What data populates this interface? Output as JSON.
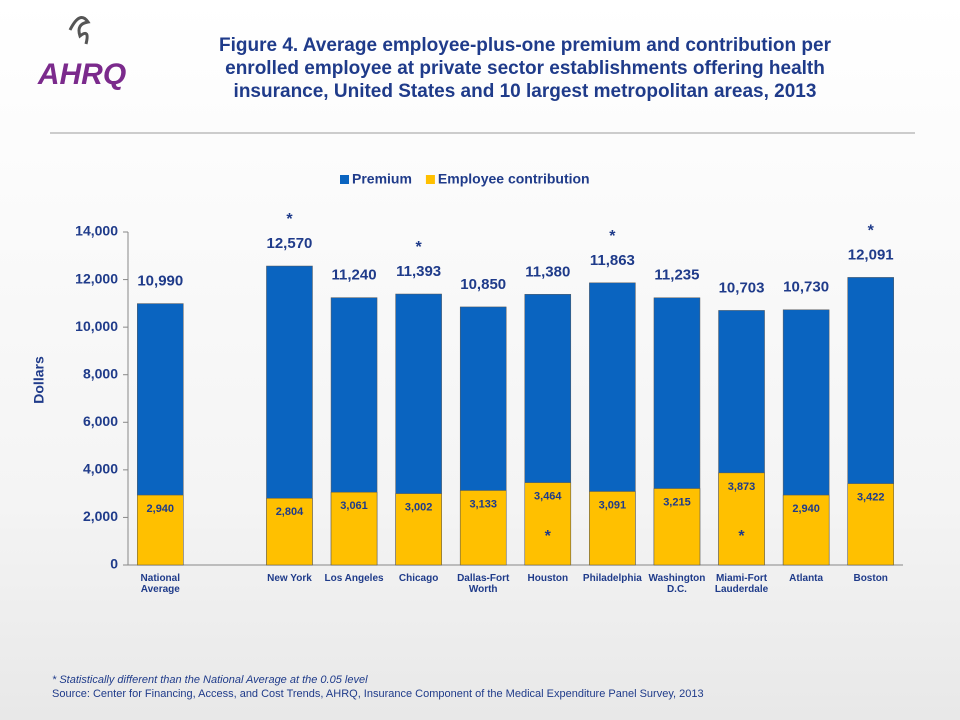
{
  "logo": "AHRQ",
  "chart_data": {
    "type": "bar",
    "title": "Figure 4. Average employee-plus-one premium and contribution per enrolled employee at private sector establishments offering health insurance, United States and 10 largest metropolitan areas, 2013",
    "ylabel": "Dollars",
    "categories": [
      "National Average",
      null,
      "New York",
      "Los Angeles",
      "Chicago",
      "Dallas-Fort Worth",
      "Houston",
      "Philadelphia",
      "Washington D.C.",
      "Miami-Fort Lauderdale",
      "Atlanta",
      "Boston"
    ],
    "series": [
      {
        "name": "Premium",
        "color": "#0a64c0",
        "values": [
          10990,
          null,
          12570,
          11240,
          11393,
          10850,
          11380,
          11863,
          11235,
          10703,
          10730,
          12091
        ],
        "value_labels": [
          "10,990",
          null,
          "12,570",
          "11,240",
          "11,393",
          "10,850",
          "11,380",
          "11,863",
          "11,235",
          "10,703",
          "10,730",
          "12,091"
        ],
        "annotations": [
          null,
          null,
          "*",
          null,
          "*",
          null,
          null,
          "*",
          null,
          null,
          null,
          "*"
        ]
      },
      {
        "name": "Employee contribution",
        "color": "#ffc000",
        "values": [
          2940,
          null,
          2804,
          3061,
          3002,
          3133,
          3464,
          3091,
          3215,
          3873,
          2940,
          3422
        ],
        "value_labels": [
          "2,940",
          null,
          "2,804",
          "3,061",
          "3,002",
          "3,133",
          "3,464",
          "3,091",
          "3,215",
          "3,873",
          "2,940",
          "3,422"
        ],
        "annotations": [
          null,
          null,
          null,
          null,
          null,
          null,
          "*",
          null,
          null,
          "*",
          null,
          null
        ]
      }
    ],
    "ylim": [
      0,
      14000
    ],
    "yticks": [
      {
        "value": 0,
        "label": "0"
      },
      {
        "value": 2000,
        "label": "2,000"
      },
      {
        "value": 4000,
        "label": "4,000"
      },
      {
        "value": 6000,
        "label": "6,000"
      },
      {
        "value": 8000,
        "label": "8,000"
      },
      {
        "value": 10000,
        "label": "10,000"
      },
      {
        "value": 12000,
        "label": "12,000"
      },
      {
        "value": 14000,
        "label": "14,000"
      }
    ],
    "legend": "top",
    "footnote": "* Statistically different than the National Average at the 0.05 level",
    "source": "Source: Center for Financing, Access, and Cost Trends, AHRQ, Insurance Component of the Medical Expenditure Panel Survey, 2013"
  }
}
